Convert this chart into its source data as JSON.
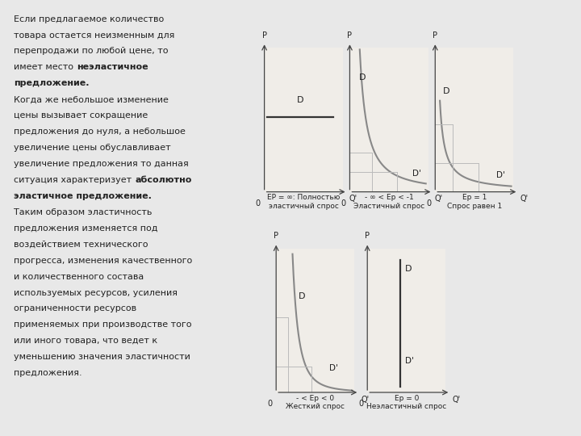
{
  "bg_color": "#e8e8e8",
  "page_color": "#f0ede8",
  "curve_color": "#888888",
  "grid_color": "#bbbbbb",
  "arrow_color": "#444444",
  "text_color": "#222222",
  "text_lines": [
    [
      [
        "Если предлагаемое количество",
        false
      ]
    ],
    [
      [
        "товара остается неизменным для",
        false
      ]
    ],
    [
      [
        "перепродажи по любой цене, то",
        false
      ]
    ],
    [
      [
        "имеет место ",
        false
      ],
      [
        "неэластичное",
        true
      ]
    ],
    [
      [
        "предложение.",
        true
      ]
    ],
    [
      [
        "Когда же небольшое изменение",
        false
      ]
    ],
    [
      [
        "цены вызывает сокращение",
        false
      ]
    ],
    [
      [
        "предложения до нуля, а небольшое",
        false
      ]
    ],
    [
      [
        "увеличение цены обуславливает",
        false
      ]
    ],
    [
      [
        "увеличение предложения то данная",
        false
      ]
    ],
    [
      [
        "ситуация характеризует ",
        false
      ],
      [
        "абсолютно",
        true
      ]
    ],
    [
      [
        "эластичное предложение.",
        true
      ]
    ],
    [
      [
        "Таким образом эластичность",
        false
      ]
    ],
    [
      [
        "предложения изменяется под",
        false
      ]
    ],
    [
      [
        "воздействием технического",
        false
      ]
    ],
    [
      [
        "прогресса, изменения качественного",
        false
      ]
    ],
    [
      [
        "и количественного состава",
        false
      ]
    ],
    [
      [
        "используемых ресурсов, усиления",
        false
      ]
    ],
    [
      [
        "ограниченности ресурсов",
        false
      ]
    ],
    [
      [
        "применяемых при производстве того",
        false
      ]
    ],
    [
      [
        "или иного товара, что ведет к",
        false
      ]
    ],
    [
      [
        "уменьшению значения эластичности",
        false
      ]
    ],
    [
      [
        "предложения.",
        false
      ]
    ]
  ],
  "chart_labels": [
    "EP = ∞: Полностью\nэластичный спрос",
    "- ∞ < Eр < -1\nЭластичный спрос",
    "Eр = 1\nСпрос равен 1",
    "- < Eр < 0\nЖесткий спрос",
    "Eр = 0\nНеэластичный спрос"
  ],
  "font_size": 8.0,
  "label_font_size": 6.5
}
